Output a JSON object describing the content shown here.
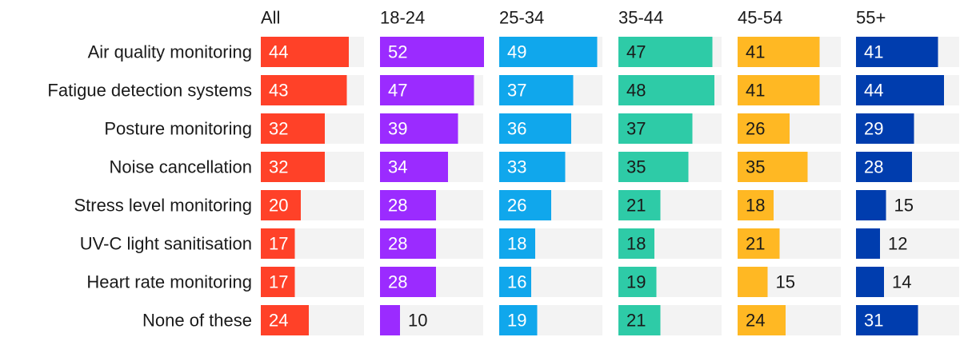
{
  "chart_data": {
    "type": "bar",
    "orientation": "horizontal",
    "layout": "small-multiples",
    "xlim": [
      0,
      60
    ],
    "grid": false,
    "legend": "none",
    "categories": [
      "Air quality monitoring",
      "Fatigue detection systems",
      "Posture monitoring",
      "Noise cancellation",
      "Stress level monitoring",
      "UV-C light sanitisation",
      "Heart rate monitoring",
      "None of these"
    ],
    "series": [
      {
        "name": "All",
        "color": "#FF4128",
        "values": [
          44,
          43,
          32,
          32,
          20,
          17,
          17,
          24
        ]
      },
      {
        "name": "18-24",
        "color": "#9B2BFF",
        "values": [
          52,
          47,
          39,
          34,
          28,
          28,
          28,
          10
        ]
      },
      {
        "name": "25-34",
        "color": "#10A7EC",
        "values": [
          49,
          37,
          36,
          33,
          26,
          18,
          16,
          19
        ]
      },
      {
        "name": "35-44",
        "color": "#2ECBA7",
        "values": [
          47,
          48,
          37,
          35,
          21,
          18,
          19,
          21
        ]
      },
      {
        "name": "45-54",
        "color": "#FFB823",
        "values": [
          41,
          41,
          26,
          35,
          18,
          21,
          15,
          24
        ]
      },
      {
        "name": "55+",
        "color": "#003DAE",
        "values": [
          41,
          44,
          29,
          28,
          15,
          12,
          14,
          31
        ]
      }
    ],
    "track_color": "#F3F3F3",
    "label_color_inside": "#FFFFFF",
    "label_color_outside": "#1A1A1A",
    "dark_inside_label_series": [
      "35-44",
      "45-54"
    ]
  }
}
